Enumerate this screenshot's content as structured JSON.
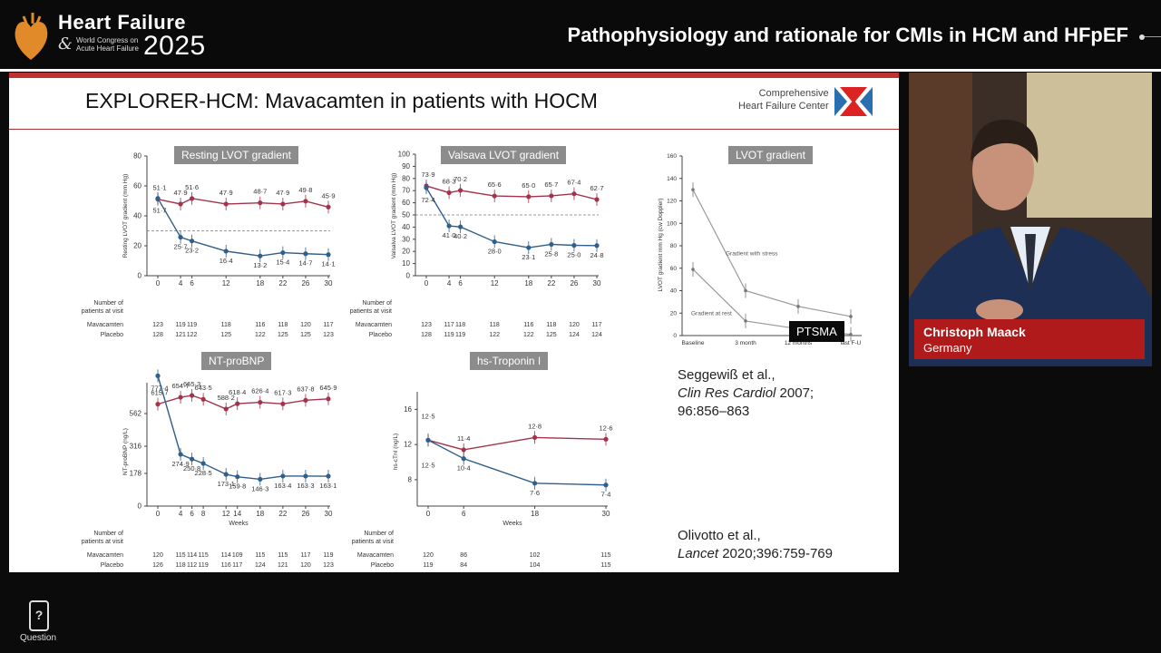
{
  "header": {
    "brand_line1": "Heart Failure",
    "brand_amp": "&",
    "brand_line2": "World Congress on",
    "brand_line3": "Acute Heart Failure",
    "brand_year": "2025",
    "session_title": "Pathophysiology and rationale for CMIs in HCM and HFpEF"
  },
  "slide": {
    "title": "EXPLORER-HCM: Mavacamten in patients with HOCM",
    "org_line1": "Comprehensive",
    "org_line2": "Heart Failure Center",
    "ptsma_label": "PTSMA",
    "ref1_line1": "Seggewiß et al.,",
    "ref1_journal": "Clin Res Cardiol",
    "ref1_year": " 2007;",
    "ref1_line3": "96:856–863",
    "ref2_line1": "Olivotto et al.,",
    "ref2_journal": "Lancet",
    "ref2_rest": " 2020;396:759-769"
  },
  "speaker": {
    "name": "Christoph Maack",
    "country": "Germany"
  },
  "footer": {
    "question_label": "Question"
  },
  "colors": {
    "mavacamten": "#2f5f8a",
    "placebo": "#a3334b",
    "accent": "#b01a1a"
  },
  "chart_data": [
    {
      "type": "line",
      "title": "Resting LVOT gradient",
      "ylabel": "Resting LVOT gradient (mm Hg)",
      "ylim": [
        0,
        80
      ],
      "yticks": [
        0,
        20,
        40,
        60,
        80
      ],
      "x": [
        0,
        4,
        6,
        12,
        18,
        22,
        26,
        30
      ],
      "series": [
        {
          "name": "Placebo",
          "values": [
            51.1,
            47.9,
            51.6,
            47.9,
            48.7,
            47.9,
            49.8,
            45.9
          ],
          "labels": [
            "51·1",
            "47·9",
            "51·6",
            "47·9",
            "48·7",
            "47·9",
            "49·8",
            "45·9"
          ]
        },
        {
          "name": "Mavacamten",
          "values": [
            51.7,
            25.7,
            23.2,
            16.4,
            13.2,
            15.4,
            14.7,
            14.1
          ],
          "labels": [
            "51·7",
            "25·7",
            "23·2",
            "16·4",
            "13·2",
            "15·4",
            "14·7",
            "14·1"
          ]
        }
      ],
      "threshold": 30,
      "table": {
        "header": [
          "Number of",
          "patients at visit"
        ],
        "rows": [
          {
            "name": "Mavacamten",
            "values": [
              "123",
              "119",
              "119",
              "118",
              "116",
              "118",
              "120",
              "117"
            ]
          },
          {
            "name": "Placebo",
            "values": [
              "128",
              "121",
              "122",
              "125",
              "122",
              "125",
              "125",
              "123"
            ]
          }
        ]
      }
    },
    {
      "type": "line",
      "title": "Valsava LVOT gradient",
      "ylabel": "Valsalva LVOT gradient (mm Hg)",
      "ylim": [
        0,
        100
      ],
      "yticks": [
        0,
        10,
        20,
        30,
        40,
        50,
        60,
        70,
        80,
        90,
        100
      ],
      "x": [
        0,
        4,
        6,
        12,
        18,
        22,
        26,
        30
      ],
      "series": [
        {
          "name": "Placebo",
          "values": [
            73.9,
            68.3,
            70.2,
            65.6,
            65.0,
            65.7,
            67.4,
            62.7
          ],
          "labels": [
            "73·9",
            "68·3",
            "70·2",
            "65·6",
            "65·0",
            "65·7",
            "67·4",
            "62·7"
          ]
        },
        {
          "name": "Mavacamten",
          "values": [
            72.4,
            41.0,
            40.2,
            28.0,
            23.1,
            25.8,
            25.0,
            24.8
          ],
          "labels": [
            "72·4",
            "41·0",
            "40·2",
            "28·0",
            "23·1",
            "25·8",
            "25·0",
            "24·8"
          ]
        }
      ],
      "threshold": 50,
      "table": {
        "header": [
          "Number of",
          "patients at visit"
        ],
        "rows": [
          {
            "name": "Mavacamten",
            "values": [
              "123",
              "117",
              "118",
              "118",
              "116",
              "118",
              "120",
              "117"
            ]
          },
          {
            "name": "Placebo",
            "values": [
              "128",
              "119",
              "119",
              "122",
              "122",
              "125",
              "124",
              "124"
            ]
          }
        ]
      }
    },
    {
      "type": "line",
      "title": "LVOT gradient",
      "ylabel": "LVOT gradient mm Hg (cw Doppler)",
      "ylim": [
        0,
        160
      ],
      "yticks": [
        0,
        20,
        40,
        60,
        80,
        100,
        120,
        140,
        160
      ],
      "categories": [
        "Baseline",
        "3 month",
        "12 months",
        "last F-U"
      ],
      "series": [
        {
          "name": "Gradient with stress",
          "values": [
            130,
            40,
            26,
            17
          ]
        },
        {
          "name": "Gradient at rest",
          "values": [
            59,
            13,
            6,
            1
          ]
        }
      ]
    },
    {
      "type": "line",
      "title": "NT-proBNP",
      "ylabel": "NT-proBNP (ng/L)",
      "xlabel": "Weeks",
      "yticks": [
        "0",
        "178",
        "316",
        "562"
      ],
      "x": [
        0,
        4,
        6,
        8,
        12,
        14,
        18,
        22,
        26,
        30
      ],
      "series": [
        {
          "name": "Placebo",
          "values": [
            615.7,
            654.7,
            665.3,
            643.5,
            588.2,
            618.4,
            626.4,
            617.3,
            637.8,
            645.9
          ],
          "labels": [
            "615·7",
            "654·7",
            "665·3",
            "643·5",
            "588·2",
            "618·4",
            "626·4",
            "617·3",
            "637·8",
            "645·9"
          ]
        },
        {
          "name": "Mavacamten",
          "values": [
            777.4,
            274.9,
            250.8,
            228.5,
            173.1,
            159.8,
            146.3,
            163.4,
            163.3,
            163.1
          ],
          "labels": [
            "777·4",
            "274·9",
            "250·8",
            "228·5",
            "173·1",
            "159·8",
            "146·3",
            "163·4",
            "163·3",
            "163·1"
          ]
        }
      ],
      "table": {
        "header": [
          "Number of",
          "patients at visit"
        ],
        "rows": [
          {
            "name": "Mavacamten",
            "values": [
              "120",
              "115",
              "114",
              "115",
              "114",
              "109",
              "115",
              "115",
              "117",
              "119"
            ]
          },
          {
            "name": "Placebo",
            "values": [
              "126",
              "118",
              "112",
              "119",
              "116",
              "117",
              "124",
              "121",
              "120",
              "123"
            ]
          }
        ]
      }
    },
    {
      "type": "line",
      "title": "hs-Troponin I",
      "ylabel": "hs-cTnI (ng/L)",
      "xlabel": "Weeks",
      "yticks": [
        "8",
        "12",
        "16"
      ],
      "x": [
        0,
        6,
        18,
        30
      ],
      "series": [
        {
          "name": "Placebo",
          "values": [
            12.5,
            11.4,
            12.8,
            12.6
          ],
          "labels": [
            "12·5",
            "11·4",
            "12·8",
            "12·6"
          ]
        },
        {
          "name": "Mavacamten",
          "values": [
            12.5,
            10.4,
            7.6,
            7.4
          ],
          "labels": [
            "12·5",
            "10·4",
            "7·6",
            "7·4"
          ]
        }
      ],
      "table": {
        "header": [
          "Number of",
          "patients at visit"
        ],
        "rows": [
          {
            "name": "Mavacamten",
            "values": [
              "120",
              "86",
              "102",
              "115"
            ]
          },
          {
            "name": "Placebo",
            "values": [
              "119",
              "84",
              "104",
              "115"
            ]
          }
        ]
      }
    }
  ]
}
